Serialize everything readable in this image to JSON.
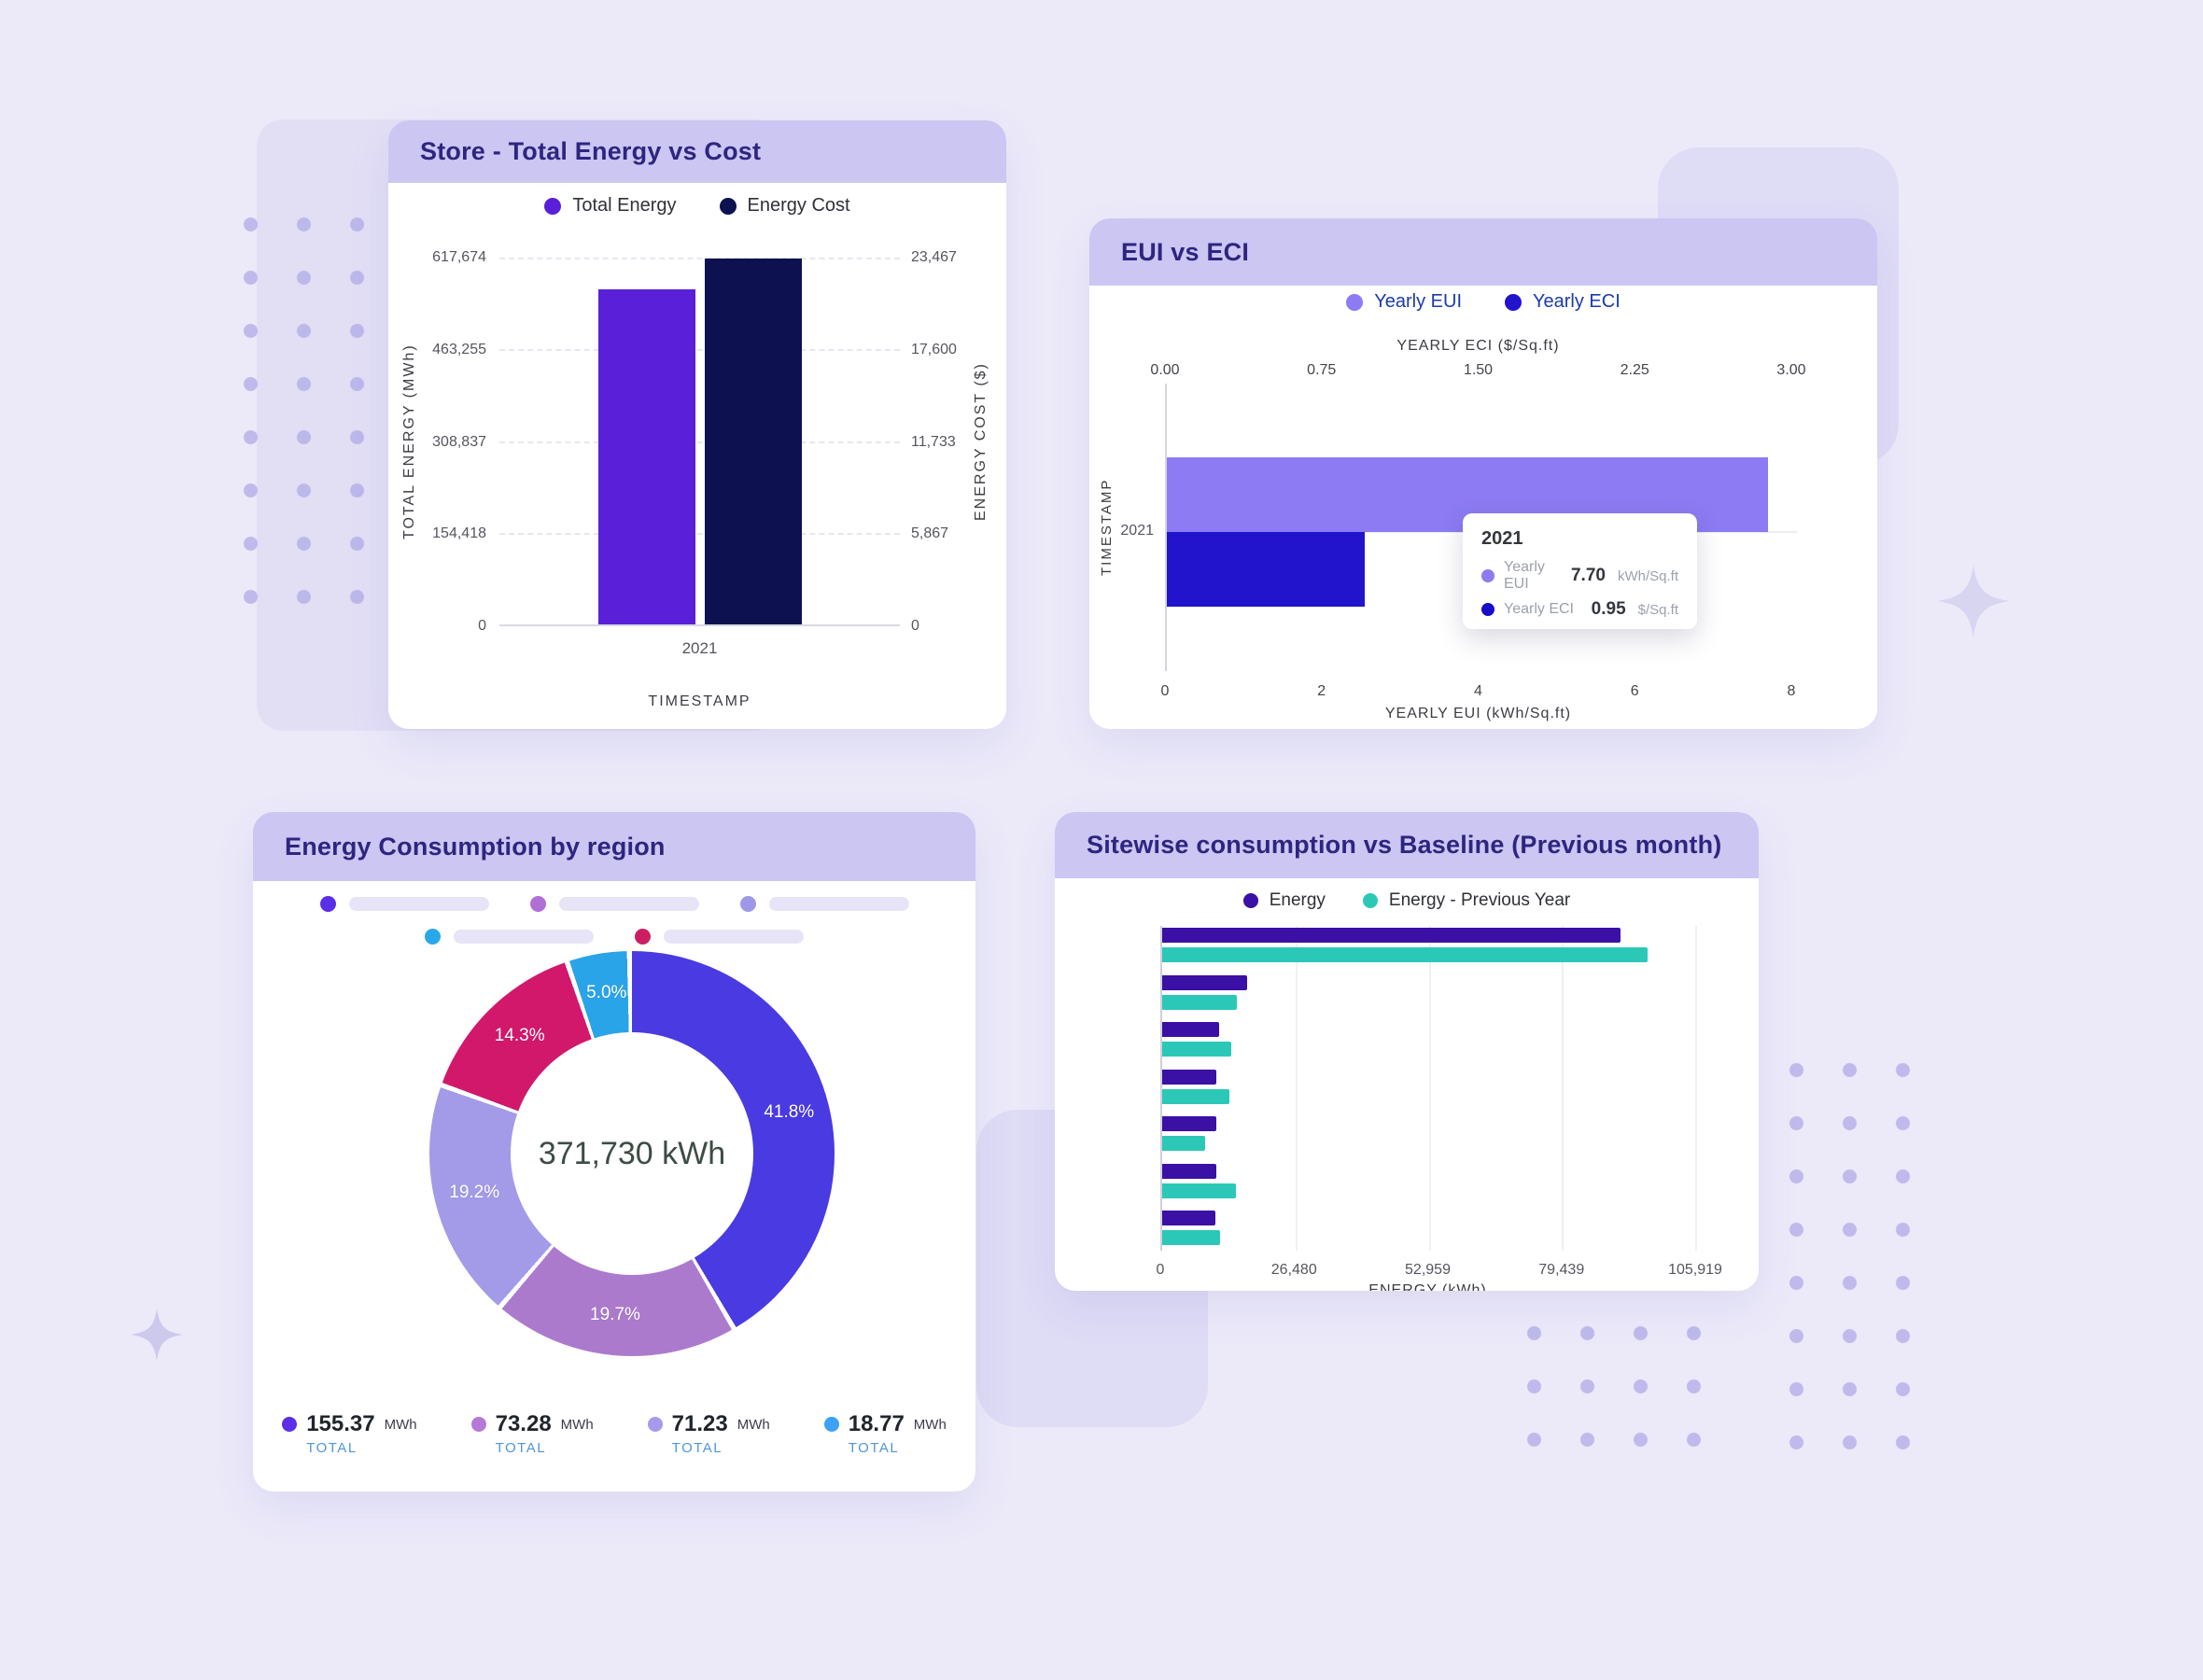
{
  "cards": {
    "store": {
      "title": "Store - Total Energy vs Cost",
      "legend": [
        {
          "label": "Total Energy",
          "color": "#5A1FD8"
        },
        {
          "label": "Energy Cost",
          "color": "#0D1150"
        }
      ],
      "y_left": {
        "label": "TOTAL ENERGY (MWh)",
        "ticks": [
          "617,674",
          "463,255",
          "308,837",
          "154,418",
          "0"
        ]
      },
      "y_right": {
        "label": "ENERGY COST ($)",
        "ticks": [
          "23,467",
          "17,600",
          "11,733",
          "5,867",
          "0"
        ]
      },
      "x_tick": "2021",
      "x_label": "TIMESTAMP"
    },
    "eui": {
      "title": "EUI vs ECI",
      "legend": [
        {
          "label": "Yearly EUI",
          "color": "#8C7BF2"
        },
        {
          "label": "Yearly ECI",
          "color": "#2213CC"
        }
      ],
      "top_axis": {
        "label": "YEARLY ECI ($/Sq.ft)",
        "ticks": [
          "0.00",
          "0.75",
          "1.50",
          "2.25",
          "3.00"
        ]
      },
      "bottom_axis": {
        "label": "YEARLY EUI (kWh/Sq.ft)",
        "ticks": [
          "0",
          "2",
          "4",
          "6",
          "8"
        ]
      },
      "y_label": "TIMESTAMP",
      "y_tick": "2021",
      "tooltip": {
        "title": "2021",
        "rows": [
          {
            "label": "Yearly EUI",
            "value": "7.70",
            "unit": "kWh/Sq.ft",
            "color": "#8C7BF2"
          },
          {
            "label": "Yearly ECI",
            "value": "0.95",
            "unit": "$/Sq.ft",
            "color": "#1A0BC8"
          }
        ]
      }
    },
    "region": {
      "title": "Energy Consumption by region",
      "center_label": "371,730 kWh",
      "skeleton_rows": [
        [
          "#5B2FE8",
          "#B06FD4",
          "#9F97E8"
        ],
        [
          "#29A8E8",
          "#CC1F63"
        ]
      ],
      "totals": [
        {
          "value": "155.37",
          "unit": "MWh",
          "caption": "TOTAL",
          "color": "#5B2FE8"
        },
        {
          "value": "73.28",
          "unit": "MWh",
          "caption": "TOTAL",
          "color": "#B678D8"
        },
        {
          "value": "71.23",
          "unit": "MWh",
          "caption": "TOTAL",
          "color": "#A79AEC"
        },
        {
          "value": "18.77",
          "unit": "MWh",
          "caption": "TOTAL",
          "color": "#3DA1F5"
        }
      ]
    },
    "sitewise": {
      "title": "Sitewise consumption vs Baseline (Previous month)",
      "legend": [
        {
          "label": "Energy",
          "color": "#3A10A5"
        },
        {
          "label": "Energy - Previous Year",
          "color": "#2BC8B8"
        }
      ],
      "x_axis": {
        "label": "ENERGY (kWh)",
        "ticks": [
          "0",
          "26,480",
          "52,959",
          "79,439",
          "105,919"
        ]
      }
    }
  },
  "chart_data": [
    {
      "id": "store-energy-cost",
      "type": "bar",
      "title": "Store - Total Energy vs Cost",
      "categories": [
        "2021"
      ],
      "xlabel": "TIMESTAMP",
      "series": [
        {
          "name": "Total Energy",
          "axis": "left",
          "values": [
            564500
          ],
          "unit": "MWh",
          "color": "#5A1FD8"
        },
        {
          "name": "Energy Cost",
          "axis": "right",
          "values": [
            23400
          ],
          "unit": "$",
          "color": "#0D1150"
        }
      ],
      "left_axis": {
        "label": "TOTAL ENERGY (MWh)",
        "max": 617674,
        "ticks": [
          0,
          154418,
          308837,
          463255,
          617674
        ]
      },
      "right_axis": {
        "label": "ENERGY COST ($)",
        "max": 23467,
        "ticks": [
          0,
          5867,
          11733,
          17600,
          23467
        ]
      },
      "grid": "dashed-horizontal"
    },
    {
      "id": "eui-vs-eci",
      "type": "bar",
      "orientation": "horizontal",
      "title": "EUI vs ECI",
      "categories": [
        "2021"
      ],
      "ylabel": "TIMESTAMP",
      "series": [
        {
          "name": "Yearly EUI",
          "axis": "bottom",
          "axis_max": 8,
          "values": [
            7.7
          ],
          "unit": "kWh/Sq.ft",
          "color": "#8C7BF2"
        },
        {
          "name": "Yearly ECI",
          "axis": "top",
          "axis_max": 3,
          "values": [
            0.95
          ],
          "unit": "$/Sq.ft",
          "color": "#2213CC"
        }
      ],
      "top_axis": {
        "label": "YEARLY ECI ($/Sq.ft)",
        "range": [
          0,
          3
        ],
        "ticks": [
          0.0,
          0.75,
          1.5,
          2.25,
          3.0
        ]
      },
      "bottom_axis": {
        "label": "YEARLY EUI (kWh/Sq.ft)",
        "range": [
          0,
          8
        ],
        "ticks": [
          0,
          2,
          4,
          6,
          8
        ]
      },
      "tooltip_shown_for": "2021"
    },
    {
      "id": "energy-by-region",
      "type": "pie",
      "title": "Energy Consumption by region",
      "center_total": "371,730 kWh",
      "slices": [
        {
          "pct": 41.8,
          "color": "#4A3AE2",
          "total_mwh": 155.37
        },
        {
          "pct": 19.7,
          "color": "#AC7ACC",
          "total_mwh": 73.28
        },
        {
          "pct": 19.2,
          "color": "#A39BE8",
          "total_mwh": 71.23
        },
        {
          "pct": 14.3,
          "color": "#D2186B",
          "total_mwh": null
        },
        {
          "pct": 5.0,
          "color": "#2AA4E8",
          "total_mwh": 18.77
        }
      ]
    },
    {
      "id": "sitewise-vs-baseline",
      "type": "bar",
      "orientation": "horizontal",
      "title": "Sitewise consumption vs Baseline (Previous month)",
      "xlabel": "ENERGY (kWh)",
      "xmax": 105919,
      "xticks": [
        0,
        26480,
        52959,
        79439,
        105919
      ],
      "series": [
        {
          "name": "Energy",
          "color": "#3A10A5",
          "values": [
            91000,
            16800,
            11300,
            10700,
            10700,
            10700,
            10500
          ]
        },
        {
          "name": "Energy - Previous Year",
          "color": "#2BC8B8",
          "values": [
            96500,
            14800,
            13700,
            13300,
            8500,
            14600,
            11500
          ]
        }
      ]
    }
  ]
}
